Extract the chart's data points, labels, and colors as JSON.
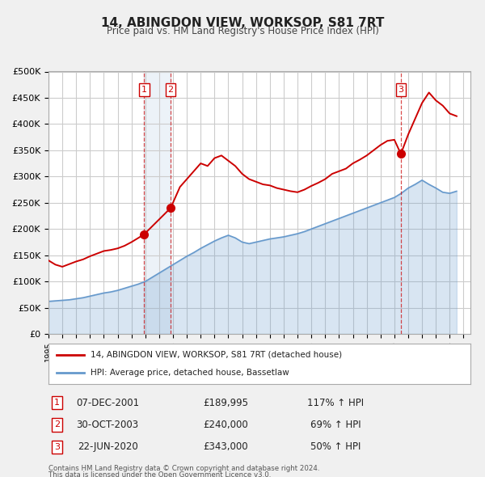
{
  "title": "14, ABINGDON VIEW, WORKSOP, S81 7RT",
  "subtitle": "Price paid vs. HM Land Registry's House Price Index (HPI)",
  "xlabel": "",
  "ylabel": "",
  "ylim": [
    0,
    500000
  ],
  "yticks": [
    0,
    50000,
    100000,
    150000,
    200000,
    250000,
    300000,
    350000,
    400000,
    450000,
    500000
  ],
  "ytick_labels": [
    "£0",
    "£50K",
    "£100K",
    "£150K",
    "£200K",
    "£250K",
    "£300K",
    "£350K",
    "£400K",
    "£450K",
    "£500K"
  ],
  "xlim_start": 1995.0,
  "xlim_end": 2025.5,
  "background_color": "#f0f0f0",
  "plot_bg_color": "#ffffff",
  "grid_color": "#cccccc",
  "sale_color": "#cc0000",
  "hpi_color": "#6699cc",
  "sale_label": "14, ABINGDON VIEW, WORKSOP, S81 7RT (detached house)",
  "hpi_label": "HPI: Average price, detached house, Bassetlaw",
  "transactions": [
    {
      "num": 1,
      "date": "07-DEC-2001",
      "price": 189995,
      "pct": "117%",
      "year": 2001.92
    },
    {
      "num": 2,
      "date": "30-OCT-2003",
      "price": 240000,
      "pct": "69%",
      "year": 2003.83
    },
    {
      "num": 3,
      "date": "22-JUN-2020",
      "price": 343000,
      "pct": "50%",
      "year": 2020.47
    }
  ],
  "footnote1": "Contains HM Land Registry data © Crown copyright and database right 2024.",
  "footnote2": "This data is licensed under the Open Government Licence v3.0.",
  "sale_line_data": {
    "years": [
      1995.0,
      1995.5,
      1996.0,
      1996.5,
      1997.0,
      1997.5,
      1998.0,
      1998.5,
      1999.0,
      1999.5,
      2000.0,
      2000.5,
      2001.0,
      2001.5,
      2001.92,
      2003.83,
      2004.5,
      2005.0,
      2005.5,
      2006.0,
      2006.5,
      2007.0,
      2007.5,
      2008.0,
      2008.5,
      2009.0,
      2009.5,
      2010.0,
      2010.5,
      2011.0,
      2011.5,
      2012.0,
      2012.5,
      2013.0,
      2013.5,
      2014.0,
      2014.5,
      2015.0,
      2015.5,
      2016.0,
      2016.5,
      2017.0,
      2017.5,
      2018.0,
      2018.5,
      2019.0,
      2019.5,
      2020.0,
      2020.47,
      2021.0,
      2021.5,
      2022.0,
      2022.5,
      2023.0,
      2023.5,
      2024.0,
      2024.5
    ],
    "prices": [
      140000,
      132000,
      128000,
      133000,
      138000,
      142000,
      148000,
      153000,
      158000,
      160000,
      163000,
      168000,
      175000,
      183000,
      189995,
      240000,
      280000,
      295000,
      310000,
      325000,
      320000,
      335000,
      340000,
      330000,
      320000,
      305000,
      295000,
      290000,
      285000,
      283000,
      278000,
      275000,
      272000,
      270000,
      275000,
      282000,
      288000,
      295000,
      305000,
      310000,
      315000,
      325000,
      332000,
      340000,
      350000,
      360000,
      368000,
      370000,
      343000,
      380000,
      410000,
      440000,
      460000,
      445000,
      435000,
      420000,
      415000
    ]
  },
  "hpi_line_data": {
    "years": [
      1995.0,
      1995.5,
      1996.0,
      1996.5,
      1997.0,
      1997.5,
      1998.0,
      1998.5,
      1999.0,
      1999.5,
      2000.0,
      2000.5,
      2001.0,
      2001.5,
      2002.0,
      2002.5,
      2003.0,
      2003.5,
      2004.0,
      2004.5,
      2005.0,
      2005.5,
      2006.0,
      2006.5,
      2007.0,
      2007.5,
      2008.0,
      2008.5,
      2009.0,
      2009.5,
      2010.0,
      2010.5,
      2011.0,
      2011.5,
      2012.0,
      2012.5,
      2013.0,
      2013.5,
      2014.0,
      2014.5,
      2015.0,
      2015.5,
      2016.0,
      2016.5,
      2017.0,
      2017.5,
      2018.0,
      2018.5,
      2019.0,
      2019.5,
      2020.0,
      2020.5,
      2021.0,
      2021.5,
      2022.0,
      2022.5,
      2023.0,
      2023.5,
      2024.0,
      2024.5
    ],
    "prices": [
      62000,
      63000,
      64000,
      65000,
      67000,
      69000,
      72000,
      75000,
      78000,
      80000,
      83000,
      87000,
      91000,
      95000,
      100000,
      108000,
      116000,
      124000,
      132000,
      140000,
      148000,
      155000,
      163000,
      170000,
      177000,
      183000,
      188000,
      183000,
      175000,
      172000,
      175000,
      178000,
      181000,
      183000,
      185000,
      188000,
      191000,
      195000,
      200000,
      205000,
      210000,
      215000,
      220000,
      225000,
      230000,
      235000,
      240000,
      245000,
      250000,
      255000,
      260000,
      268000,
      278000,
      285000,
      293000,
      285000,
      278000,
      270000,
      268000,
      272000
    ]
  }
}
